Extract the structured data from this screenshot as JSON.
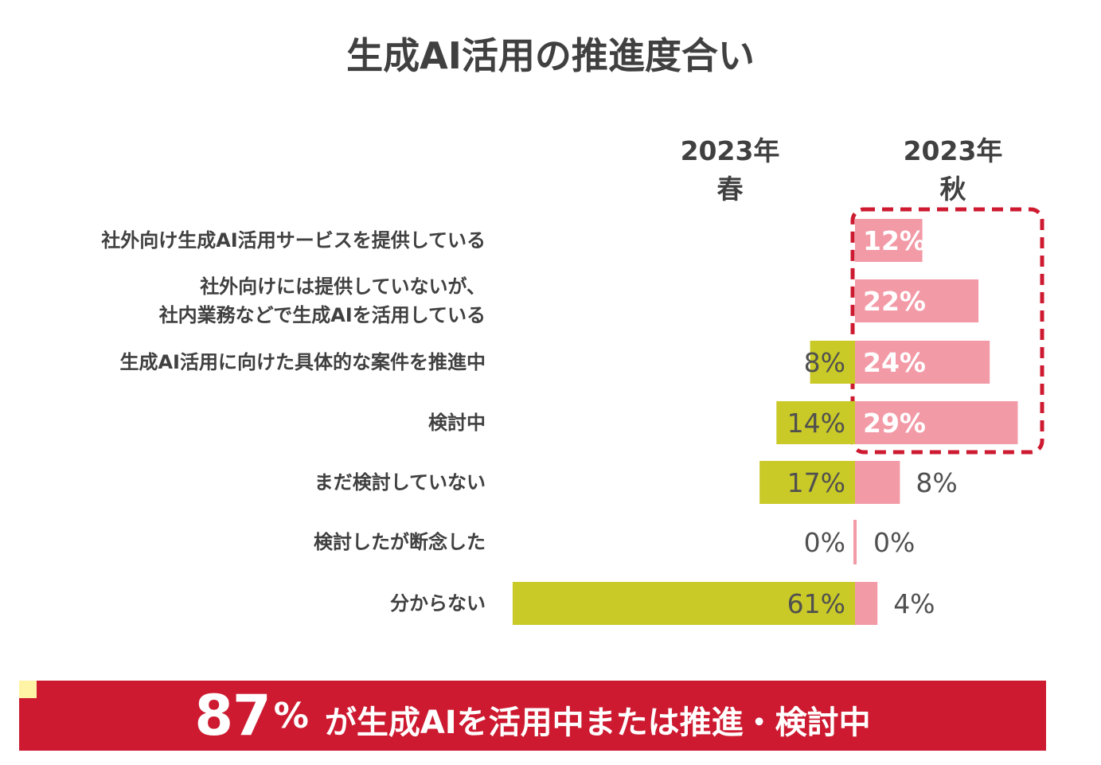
{
  "title": "生成AI活用の推進度合い",
  "columns": {
    "spring": {
      "year": "2023年",
      "season": "春"
    },
    "autumn": {
      "year": "2023年",
      "season": "秋"
    }
  },
  "chart_data": {
    "type": "bar",
    "categories": [
      [
        "社外向け生成AI活用サービスを提供している"
      ],
      [
        "社外向けには提供していないが、",
        "社内業務などで生成AIを活用している"
      ],
      [
        "生成AI活用に向けた具体的な案件を推進中"
      ],
      [
        "検討中"
      ],
      [
        "まだ検討していない"
      ],
      [
        "検討したが断念した"
      ],
      [
        "分からない"
      ]
    ],
    "series": [
      {
        "name": "2023年春",
        "values": [
          null,
          null,
          8,
          14,
          17,
          0,
          61
        ],
        "labels": [
          "",
          "",
          "8%",
          "14%",
          "17%",
          "0%",
          "61%"
        ],
        "color": "#c9c928"
      },
      {
        "name": "2023年秋",
        "values": [
          12,
          22,
          24,
          29,
          8,
          0,
          4
        ],
        "labels": [
          "12%",
          "22%",
          "24%",
          "29%",
          "8%",
          "0%",
          "4%"
        ],
        "color": "#f39aa7"
      }
    ],
    "highlight": {
      "categories": [
        0,
        1,
        2,
        3
      ],
      "color": "#cd1a30",
      "style": "dashed"
    }
  },
  "banner": {
    "number": "87",
    "unit": "%",
    "text": "が生成AIを活用中または推進・検討中",
    "bg_color": "#cd1a30"
  }
}
